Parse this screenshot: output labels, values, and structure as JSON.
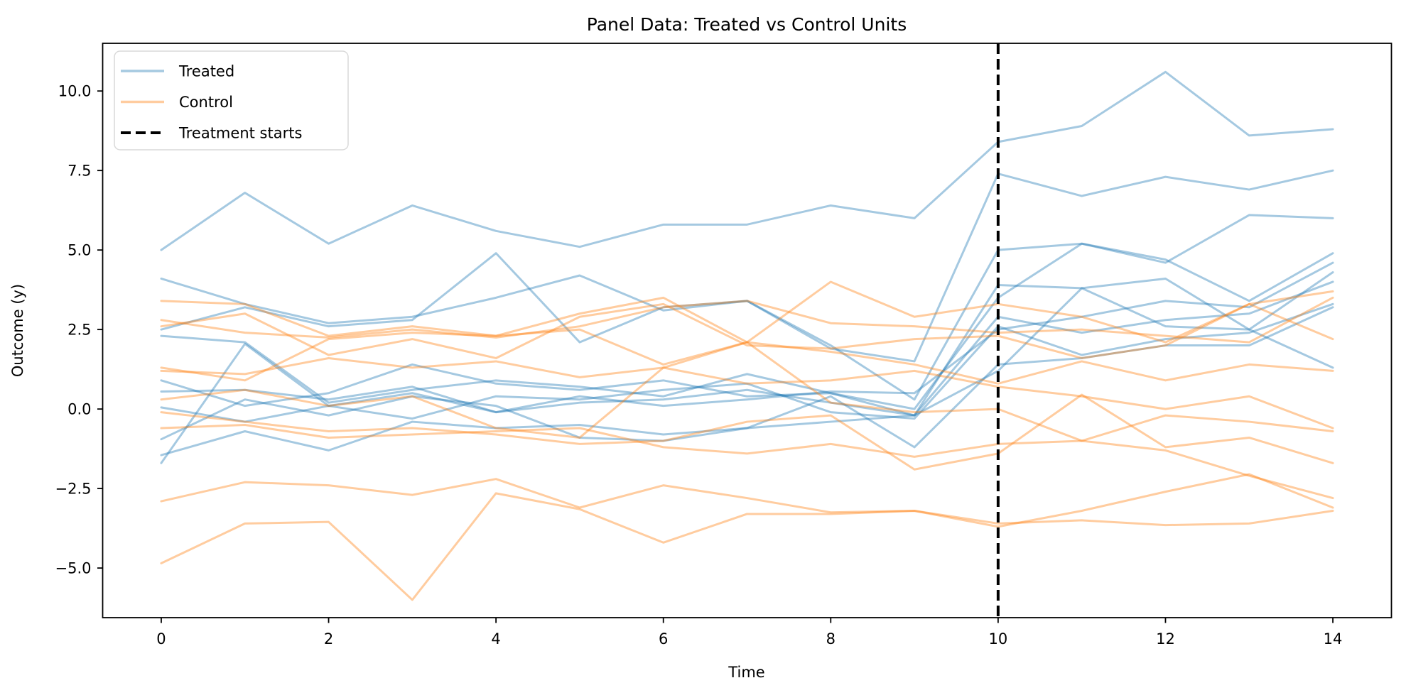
{
  "chart_data": {
    "type": "line",
    "title": "Panel Data: Treated vs Control Units",
    "xlabel": "Time",
    "ylabel": "Outcome (y)",
    "grid": false,
    "xlim": [
      -0.7,
      14.7
    ],
    "ylim": [
      -6.56,
      11.5
    ],
    "x_ticks": [
      0,
      2,
      4,
      6,
      8,
      10,
      12,
      14
    ],
    "x_tick_labels": [
      "0",
      "2",
      "4",
      "6",
      "8",
      "10",
      "12",
      "14"
    ],
    "y_ticks": [
      10.0,
      7.5,
      5.0,
      2.5,
      0.0,
      -2.5,
      -5.0
    ],
    "y_tick_labels": [
      "10.0",
      "7.5",
      "5.0",
      "2.5",
      "0.0",
      "−2.5",
      "−5.0"
    ],
    "x": [
      0,
      1,
      2,
      3,
      4,
      5,
      6,
      7,
      8,
      9,
      10,
      11,
      12,
      13,
      14
    ],
    "treatment_start_x": 10,
    "colors": {
      "treated": "#1f77b4",
      "control": "#ff7f0e",
      "line_alpha": 0.4,
      "treatment_line": "#000000",
      "spine": "#000000",
      "legend_border": "#d9d9d9"
    },
    "series": [
      {
        "group": "treated",
        "values": [
          5.0,
          6.8,
          5.2,
          6.4,
          5.6,
          5.1,
          5.8,
          5.8,
          6.4,
          6.0,
          8.4,
          8.9,
          10.6,
          8.6,
          8.8
        ]
      },
      {
        "group": "treated",
        "values": [
          4.1,
          3.3,
          2.7,
          2.9,
          3.5,
          4.2,
          3.1,
          3.4,
          1.9,
          1.5,
          7.4,
          6.7,
          7.3,
          6.9,
          7.5
        ]
      },
      {
        "group": "treated",
        "values": [
          2.5,
          3.2,
          2.6,
          2.8,
          4.9,
          2.1,
          3.2,
          3.4,
          2.0,
          0.3,
          5.0,
          5.2,
          4.7,
          3.4,
          4.9
        ]
      },
      {
        "group": "treated",
        "values": [
          2.3,
          2.1,
          0.2,
          0.6,
          0.9,
          0.7,
          0.4,
          1.1,
          0.5,
          -0.2,
          3.9,
          3.8,
          4.1,
          2.5,
          4.3
        ]
      },
      {
        "group": "treated",
        "values": [
          0.9,
          0.1,
          0.5,
          1.4,
          0.8,
          0.6,
          0.9,
          0.4,
          0.5,
          0.0,
          3.5,
          5.2,
          4.6,
          6.1,
          6.0
        ]
      },
      {
        "group": "treated",
        "values": [
          0.55,
          0.6,
          0.3,
          0.7,
          -0.1,
          0.2,
          0.3,
          0.6,
          0.2,
          -0.2,
          2.9,
          2.4,
          2.8,
          3.0,
          4.0
        ]
      },
      {
        "group": "treated",
        "values": [
          0.05,
          -0.4,
          0.1,
          -0.3,
          0.4,
          0.3,
          0.6,
          0.8,
          -0.1,
          -0.3,
          2.6,
          1.7,
          2.2,
          2.4,
          3.3
        ]
      },
      {
        "group": "treated",
        "values": [
          -0.95,
          0.3,
          -0.2,
          0.4,
          0.1,
          -0.9,
          -1.0,
          -0.6,
          0.4,
          -1.2,
          1.4,
          1.6,
          2.0,
          2.0,
          3.2
        ]
      },
      {
        "group": "treated",
        "values": [
          -1.45,
          -0.7,
          -1.3,
          -0.4,
          -0.6,
          -0.5,
          -0.8,
          -0.6,
          -0.4,
          -0.2,
          1.2,
          3.8,
          2.6,
          2.5,
          1.3
        ]
      },
      {
        "group": "treated",
        "values": [
          -1.7,
          2.05,
          0.1,
          0.5,
          -0.1,
          0.4,
          0.1,
          0.3,
          0.55,
          0.5,
          2.5,
          2.9,
          3.4,
          3.2,
          4.6
        ]
      },
      {
        "group": "control",
        "values": [
          3.4,
          3.3,
          2.3,
          2.6,
          2.3,
          3.0,
          3.5,
          2.1,
          4.0,
          2.9,
          3.3,
          2.9,
          2.1,
          3.3,
          3.7
        ]
      },
      {
        "group": "control",
        "values": [
          2.8,
          2.4,
          2.25,
          2.5,
          2.25,
          2.6,
          3.2,
          3.4,
          2.7,
          2.6,
          2.4,
          2.5,
          2.3,
          2.1,
          3.5
        ]
      },
      {
        "group": "control",
        "values": [
          2.6,
          3.0,
          1.7,
          2.2,
          1.6,
          2.9,
          3.3,
          2.0,
          1.9,
          2.2,
          2.3,
          1.6,
          2.0,
          3.3,
          2.2
        ]
      },
      {
        "group": "control",
        "values": [
          1.3,
          0.9,
          2.2,
          2.4,
          2.3,
          2.5,
          1.4,
          2.1,
          1.8,
          1.4,
          0.8,
          1.5,
          0.9,
          1.4,
          1.2
        ]
      },
      {
        "group": "control",
        "values": [
          1.2,
          1.1,
          1.6,
          1.3,
          1.5,
          1.0,
          1.3,
          0.8,
          0.9,
          1.2,
          0.7,
          0.4,
          0.0,
          0.4,
          -0.6
        ]
      },
      {
        "group": "control",
        "values": [
          0.3,
          0.6,
          0.1,
          0.4,
          -0.6,
          -0.9,
          1.3,
          2.1,
          0.2,
          -0.1,
          0.0,
          -1.0,
          -0.2,
          -0.4,
          -0.7
        ]
      },
      {
        "group": "control",
        "values": [
          -0.1,
          -0.4,
          -0.7,
          -0.6,
          -0.8,
          -1.1,
          -1.0,
          -0.4,
          -0.2,
          -1.9,
          -1.4,
          0.45,
          -1.2,
          -0.9,
          -1.7
        ]
      },
      {
        "group": "control",
        "values": [
          -0.6,
          -0.5,
          -0.9,
          -0.8,
          -0.7,
          -0.6,
          -1.2,
          -1.4,
          -1.1,
          -1.5,
          -1.1,
          -1.0,
          -1.3,
          -2.1,
          -2.8
        ]
      },
      {
        "group": "control",
        "values": [
          -2.9,
          -2.3,
          -2.4,
          -2.7,
          -2.2,
          -3.1,
          -2.4,
          -2.8,
          -3.25,
          -3.2,
          -3.7,
          -3.2,
          -2.6,
          -2.05,
          -3.1
        ]
      },
      {
        "group": "control",
        "values": [
          -4.85,
          -3.6,
          -3.55,
          -6.0,
          -2.65,
          -3.15,
          -4.2,
          -3.3,
          -3.3,
          -3.2,
          -3.6,
          -3.5,
          -3.65,
          -3.6,
          -3.2
        ]
      }
    ],
    "legend": {
      "position": "upper-left",
      "items": [
        {
          "label": "Treated",
          "color": "#1f77b4",
          "style": "solid",
          "alpha": 0.4
        },
        {
          "label": "Control",
          "color": "#ff7f0e",
          "style": "solid",
          "alpha": 0.4
        },
        {
          "label": "Treatment starts",
          "color": "#000000",
          "style": "dashed",
          "alpha": 1.0
        }
      ]
    }
  }
}
